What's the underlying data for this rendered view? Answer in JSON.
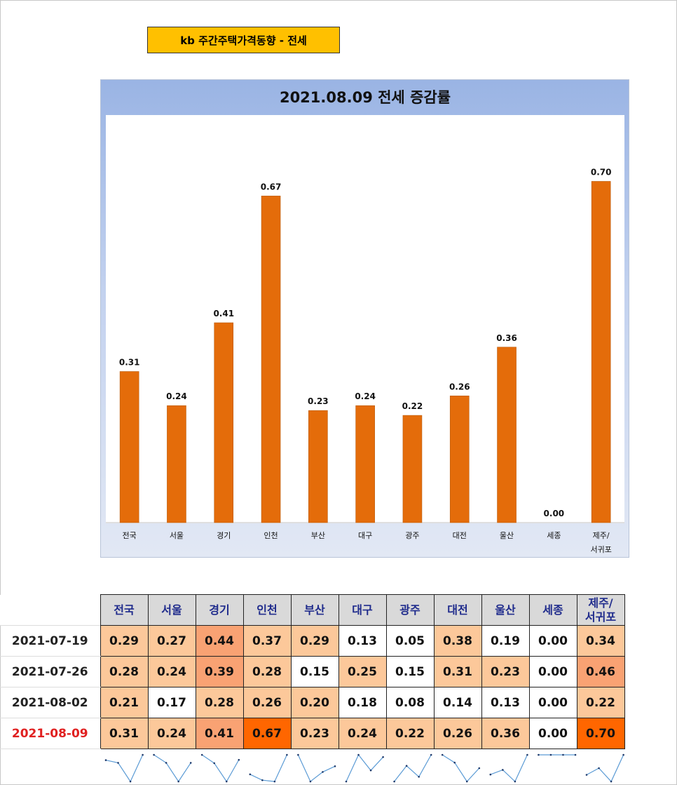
{
  "header": {
    "title": "kb 주간주택가격동향 - 전세"
  },
  "chart_data": {
    "type": "bar",
    "title": "2021.08.09 전세 증감률",
    "categories": [
      "전국",
      "서울",
      "경기",
      "인천",
      "부산",
      "대구",
      "광주",
      "대전",
      "울산",
      "세종",
      "제주/\n서귀포"
    ],
    "values": [
      0.31,
      0.24,
      0.41,
      0.67,
      0.23,
      0.24,
      0.22,
      0.26,
      0.36,
      0.0,
      0.7
    ],
    "value_labels": [
      "0.31",
      "0.24",
      "0.41",
      "0.67",
      "0.23",
      "0.24",
      "0.22",
      "0.26",
      "0.36",
      "0.00",
      "0.70"
    ],
    "ylim": [
      0,
      0.8
    ],
    "bar_color": "#e46c0a",
    "grid": false,
    "legend": "none"
  },
  "table": {
    "headers": [
      "전국",
      "서울",
      "경기",
      "인천",
      "부산",
      "대구",
      "광주",
      "대전",
      "울산",
      "세종",
      "제주/\n서귀포"
    ],
    "rows": [
      {
        "date": "2021-07-19",
        "values": [
          "0.29",
          "0.27",
          "0.44",
          "0.37",
          "0.29",
          "0.13",
          "0.05",
          "0.38",
          "0.19",
          "0.00",
          "0.34"
        ]
      },
      {
        "date": "2021-07-26",
        "values": [
          "0.28",
          "0.24",
          "0.39",
          "0.28",
          "0.15",
          "0.25",
          "0.15",
          "0.31",
          "0.23",
          "0.00",
          "0.46"
        ]
      },
      {
        "date": "2021-08-02",
        "values": [
          "0.21",
          "0.17",
          "0.28",
          "0.26",
          "0.20",
          "0.18",
          "0.08",
          "0.14",
          "0.13",
          "0.00",
          "0.22"
        ]
      },
      {
        "date": "2021-08-09",
        "values": [
          "0.31",
          "0.24",
          "0.41",
          "0.67",
          "0.23",
          "0.24",
          "0.22",
          "0.26",
          "0.36",
          "0.00",
          "0.70"
        ]
      }
    ],
    "latest_date_color": "#e02020",
    "heat_colors": {
      "none": "#ffffff",
      "light": "#fcc89a",
      "medium": "#f9a273",
      "strong": "#ff6600"
    },
    "sparkline_color": "#5b9bd5"
  }
}
